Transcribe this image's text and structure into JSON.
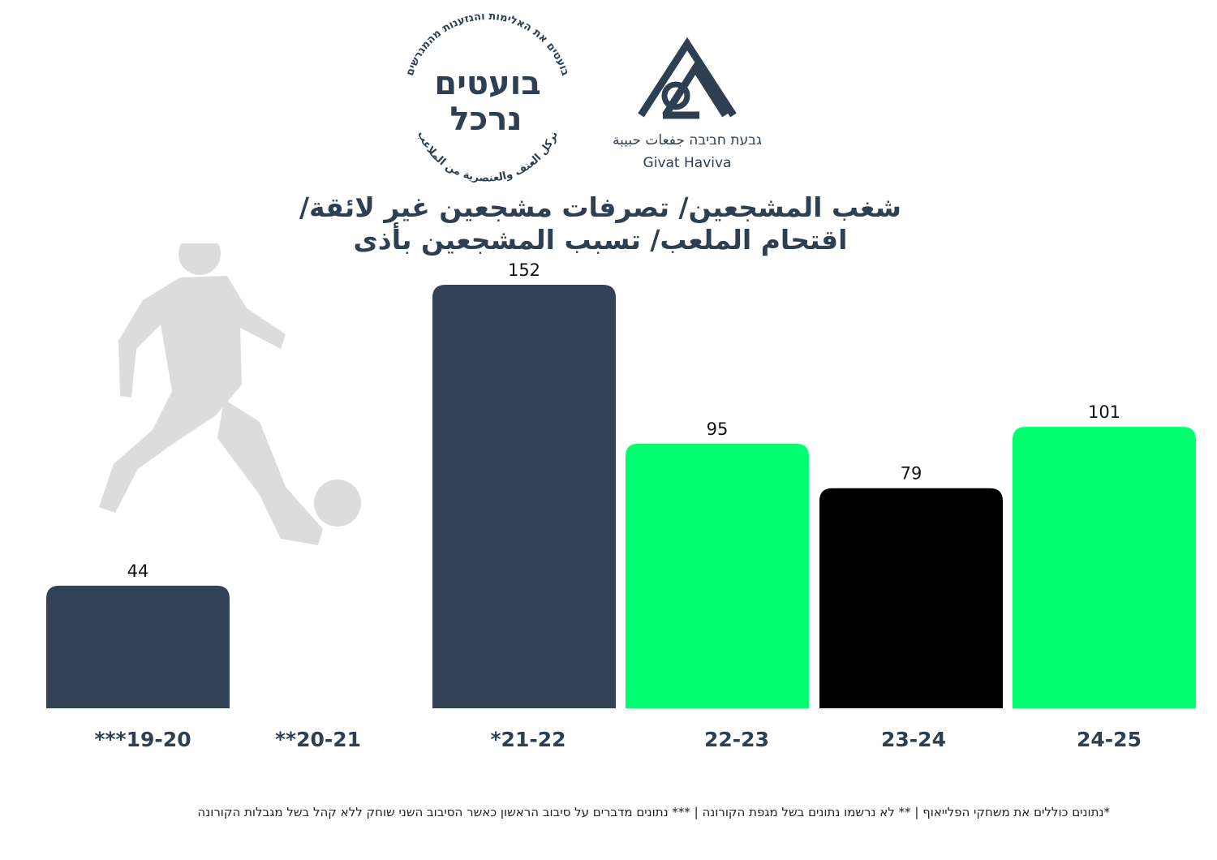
{
  "logos": {
    "stamp": {
      "name_line1": "בועטים",
      "name_line2": "נרכל",
      "ring_text_top": "בועטים את האלימות והגזענות מהמגרשים",
      "ring_text_bottom": "نركل العنف والعنصرية من الملاعب"
    },
    "givat_haviva": {
      "name_native": "גבעת חביבה  جفعات حبيبة",
      "name_en": "Givat Haviva"
    }
  },
  "title": {
    "line1": "شغب المشجعين/ تصرفات مشجعين غير لائقة/",
    "line2": "اقتحام الملعب/ تسبب المشجعين بأذى"
  },
  "chart_data": {
    "type": "bar",
    "categories": [
      "***19-20",
      "**20-21",
      "*21-22",
      "22-23",
      "23-24",
      "24-25"
    ],
    "values": [
      44,
      null,
      152,
      95,
      79,
      101
    ],
    "value_labels": [
      "44",
      "",
      "152",
      "95",
      "79",
      "101"
    ],
    "bar_colors": [
      "#314256",
      "#314256",
      "#314256",
      "#00ff6e",
      "#000000",
      "#00ff6e"
    ],
    "ylim": [
      0,
      152
    ],
    "grid": false,
    "legend": "none",
    "title": "",
    "xlabel": "",
    "ylabel": ""
  },
  "footnote": "*נתונים כוללים את משחקי הפלייאוף  |  ** לא נרשמו נתונים בשל מגפת הקורונה | *** נתונים מדברים על סיבוב הראשון כאשר הסיבוב השני שוחק ללא קהל בשל מגבלות הקורונה",
  "colors": {
    "navy": "#314256",
    "green": "#00ff6e",
    "black": "#000000",
    "silhouette": "#dcdcdc",
    "title": "#2f3f52"
  }
}
